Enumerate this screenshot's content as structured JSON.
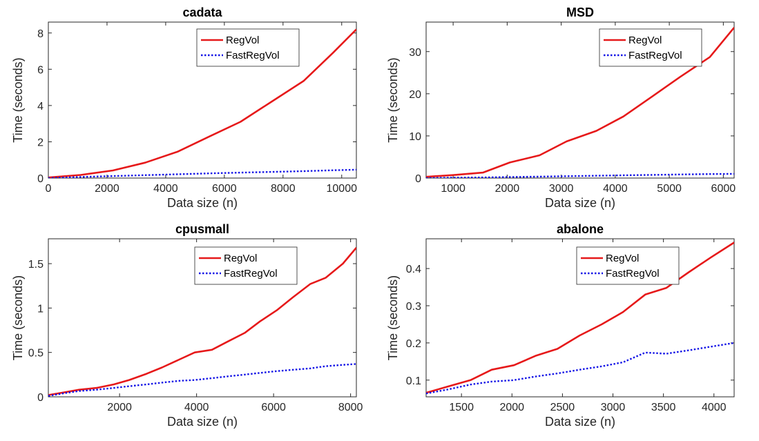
{
  "chart_data": [
    {
      "type": "line",
      "title": "cadata",
      "xlabel": "Data size (n)",
      "ylabel": "Time (seconds)",
      "xlim": [
        0,
        10500
      ],
      "ylim": [
        0,
        8.6
      ],
      "xticks": [
        0,
        2000,
        4000,
        6000,
        8000,
        10000
      ],
      "xtick_labels": [
        "0",
        "2000",
        "4000",
        "6000",
        "8000",
        "10000"
      ],
      "yticks": [
        0,
        2,
        4,
        6,
        8
      ],
      "ytick_labels": [
        "0",
        "2",
        "4",
        "6",
        "8"
      ],
      "legend_position": "top-center",
      "series": [
        {
          "name": "RegVol",
          "color": "#e6191a",
          "style": "solid",
          "x": [
            0,
            1100,
            2200,
            3300,
            4400,
            5500,
            6550,
            7600,
            8700,
            9700,
            10500
          ],
          "y": [
            0.03,
            0.17,
            0.42,
            0.85,
            1.45,
            2.3,
            3.1,
            4.2,
            5.35,
            6.9,
            8.2
          ]
        },
        {
          "name": "FastRegVol",
          "color": "#1414e6",
          "style": "dotted",
          "x": [
            0,
            1100,
            2200,
            3300,
            4400,
            5500,
            6550,
            7600,
            8700,
            9700,
            10500
          ],
          "y": [
            0.0,
            0.06,
            0.11,
            0.16,
            0.21,
            0.26,
            0.3,
            0.34,
            0.38,
            0.43,
            0.46
          ]
        }
      ]
    },
    {
      "type": "line",
      "title": "MSD",
      "xlabel": "Data size (n)",
      "ylabel": "Time (seconds)",
      "xlim": [
        500,
        6200
      ],
      "ylim": [
        0,
        37
      ],
      "xticks": [
        1000,
        2000,
        3000,
        4000,
        5000,
        6000
      ],
      "xtick_labels": [
        "1000",
        "2000",
        "3000",
        "4000",
        "5000",
        "6000"
      ],
      "yticks": [
        0,
        10,
        20,
        30
      ],
      "ytick_labels": [
        "0",
        "10",
        "20",
        "30"
      ],
      "legend_position": "top-center",
      "series": [
        {
          "name": "RegVol",
          "color": "#e6191a",
          "style": "solid",
          "x": [
            500,
            1000,
            1550,
            2050,
            2600,
            3100,
            3650,
            4150,
            4700,
            5200,
            5750,
            6200
          ],
          "y": [
            0.3,
            0.7,
            1.3,
            3.7,
            5.4,
            8.7,
            11.2,
            14.6,
            19.5,
            24.0,
            28.7,
            35.7
          ]
        },
        {
          "name": "FastRegVol",
          "color": "#1414e6",
          "style": "dotted",
          "x": [
            500,
            1000,
            1550,
            2050,
            2600,
            3100,
            3650,
            4150,
            4700,
            5200,
            5750,
            6200
          ],
          "y": [
            0.0,
            0.1,
            0.15,
            0.25,
            0.35,
            0.45,
            0.55,
            0.65,
            0.75,
            0.85,
            0.95,
            1.0
          ]
        }
      ]
    },
    {
      "type": "line",
      "title": "cpusmall",
      "xlabel": "Data size (n)",
      "ylabel": "Time (seconds)",
      "xlim": [
        150,
        8150
      ],
      "ylim": [
        0,
        1.78
      ],
      "xticks": [
        2000,
        4000,
        6000,
        8000
      ],
      "xtick_labels": [
        "2000",
        "4000",
        "6000",
        "8000"
      ],
      "yticks": [
        0,
        0.5,
        1,
        1.5
      ],
      "ytick_labels": [
        "0",
        "0.5",
        "1",
        "1.5"
      ],
      "legend_position": "top-center",
      "series": [
        {
          "name": "RegVol",
          "color": "#e6191a",
          "style": "solid",
          "x": [
            150,
            550,
            950,
            1400,
            1850,
            2250,
            2700,
            3100,
            3550,
            3950,
            4400,
            4800,
            5250,
            5650,
            6100,
            6500,
            6950,
            7350,
            7800,
            8150
          ],
          "y": [
            0.02,
            0.05,
            0.08,
            0.1,
            0.14,
            0.19,
            0.26,
            0.33,
            0.42,
            0.5,
            0.53,
            0.62,
            0.72,
            0.85,
            0.98,
            1.12,
            1.27,
            1.34,
            1.5,
            1.68
          ]
        },
        {
          "name": "FastRegVol",
          "color": "#1414e6",
          "style": "dotted",
          "x": [
            150,
            550,
            950,
            1400,
            1850,
            2250,
            2700,
            3100,
            3550,
            3950,
            4400,
            4800,
            5250,
            5650,
            6100,
            6500,
            6950,
            7350,
            7800,
            8150
          ],
          "y": [
            0.01,
            0.04,
            0.065,
            0.08,
            0.1,
            0.12,
            0.14,
            0.16,
            0.18,
            0.19,
            0.21,
            0.23,
            0.25,
            0.27,
            0.29,
            0.305,
            0.32,
            0.345,
            0.36,
            0.37
          ]
        }
      ]
    },
    {
      "type": "line",
      "title": "abalone",
      "xlabel": "Data size (n)",
      "ylabel": "Time (seconds)",
      "xlim": [
        1150,
        4200
      ],
      "ylim": [
        0.055,
        0.48
      ],
      "xticks": [
        1500,
        2000,
        2500,
        3000,
        3500,
        4000
      ],
      "xtick_labels": [
        "1500",
        "2000",
        "2500",
        "3000",
        "3500",
        "4000"
      ],
      "yticks": [
        0.1,
        0.2,
        0.3,
        0.4
      ],
      "ytick_labels": [
        "0.1",
        "0.2",
        "0.3",
        "0.4"
      ],
      "legend_position": "top-center",
      "series": [
        {
          "name": "RegVol",
          "color": "#e6191a",
          "style": "solid",
          "x": [
            1150,
            1370,
            1590,
            1800,
            2020,
            2240,
            2450,
            2670,
            2890,
            3100,
            3320,
            3530,
            3750,
            3970,
            4200
          ],
          "y": [
            0.066,
            0.083,
            0.1,
            0.128,
            0.14,
            0.166,
            0.184,
            0.22,
            0.25,
            0.283,
            0.33,
            0.348,
            0.39,
            0.43,
            0.47
          ]
        },
        {
          "name": "FastRegVol",
          "color": "#1414e6",
          "style": "dotted",
          "x": [
            1150,
            1370,
            1590,
            1800,
            2020,
            2240,
            2450,
            2670,
            2890,
            3100,
            3320,
            3530,
            3750,
            3970,
            4200
          ],
          "y": [
            0.064,
            0.075,
            0.088,
            0.096,
            0.1,
            0.11,
            0.118,
            0.128,
            0.137,
            0.148,
            0.174,
            0.171,
            0.18,
            0.19,
            0.2
          ]
        }
      ]
    }
  ]
}
